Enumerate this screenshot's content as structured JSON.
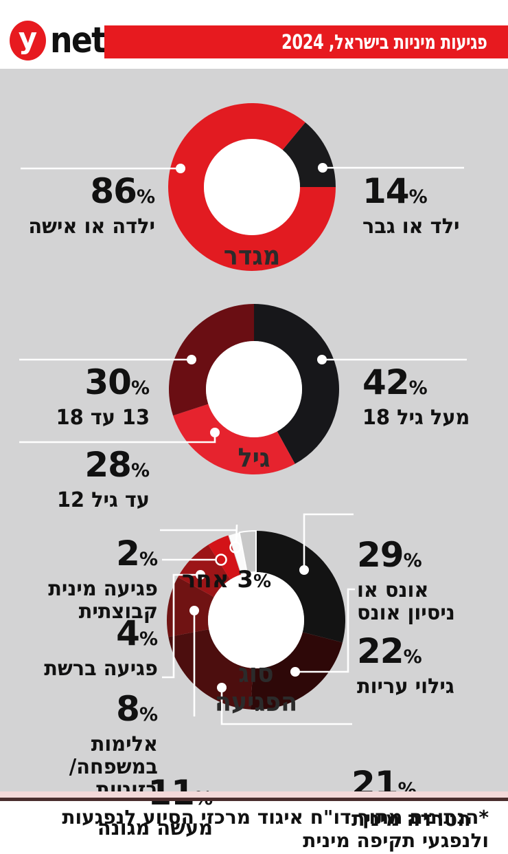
{
  "percent_sign": "%",
  "header": {
    "logo_y": "y",
    "logo_net": "net",
    "logo_color": "#e71a1f",
    "banner_color": "#e71a1f",
    "title": "פגיעות מיניות בישראל, 2024"
  },
  "chart_data": [
    {
      "type": "pie",
      "title": "מגדר",
      "start_angle_deg": 39.6,
      "labels": [
        "ילד או גבר",
        "ילדה או אישה"
      ],
      "values": [
        14,
        86
      ],
      "colors": [
        "#1a1a1c",
        "#e21b21"
      ],
      "legend_position": "callouts"
    },
    {
      "type": "pie",
      "title": "גיל",
      "start_angle_deg": 0,
      "labels": [
        "מעל גיל 18",
        "עד גיל 12",
        "13 עד 18"
      ],
      "values": [
        42,
        28,
        30
      ],
      "colors": [
        "#17171a",
        "#e6232e",
        "#6a0e13"
      ],
      "legend_position": "callouts"
    },
    {
      "type": "pie",
      "title": "סוג הפגיעה",
      "title_lines": [
        "סוג",
        "הפגיעה"
      ],
      "start_angle_deg": 0,
      "labels": [
        "אונס או ניסיון אונס",
        "גילוי עריות",
        "הטרדה מינית",
        "מעשה מגונה",
        "אלימות במשפחה/ בזוגיות",
        "פגיעה ברשת",
        "פגיעה מינית קבוצתית",
        "אחר"
      ],
      "labels_lines": [
        [
          "אונס או",
          "ניסיון אונס"
        ],
        [
          "גילוי עריות"
        ],
        [
          "הטרדה מינית"
        ],
        [
          "מעשה מגונה"
        ],
        [
          "אלימות",
          "במשפחה/",
          "בזוגיות"
        ],
        [
          "פגיעה ברשת"
        ],
        [
          "פגיעה מינית",
          "קבוצתית"
        ],
        [
          "אחר"
        ]
      ],
      "values": [
        29,
        22,
        21,
        11,
        8,
        4,
        2,
        3
      ],
      "colors": [
        "#131313",
        "#2e0808",
        "#4c0e0e",
        "#701313",
        "#9c1517",
        "#d31318",
        "#fbfbfb",
        "#c8c8c8"
      ],
      "legend_position": "callouts"
    }
  ],
  "footer": {
    "line1": "*הנתונים מתוך דו\"ח איגוד מרכזי הסיוע לנפגעות",
    "line2": "ולנפגעי תקיפה מינית"
  }
}
